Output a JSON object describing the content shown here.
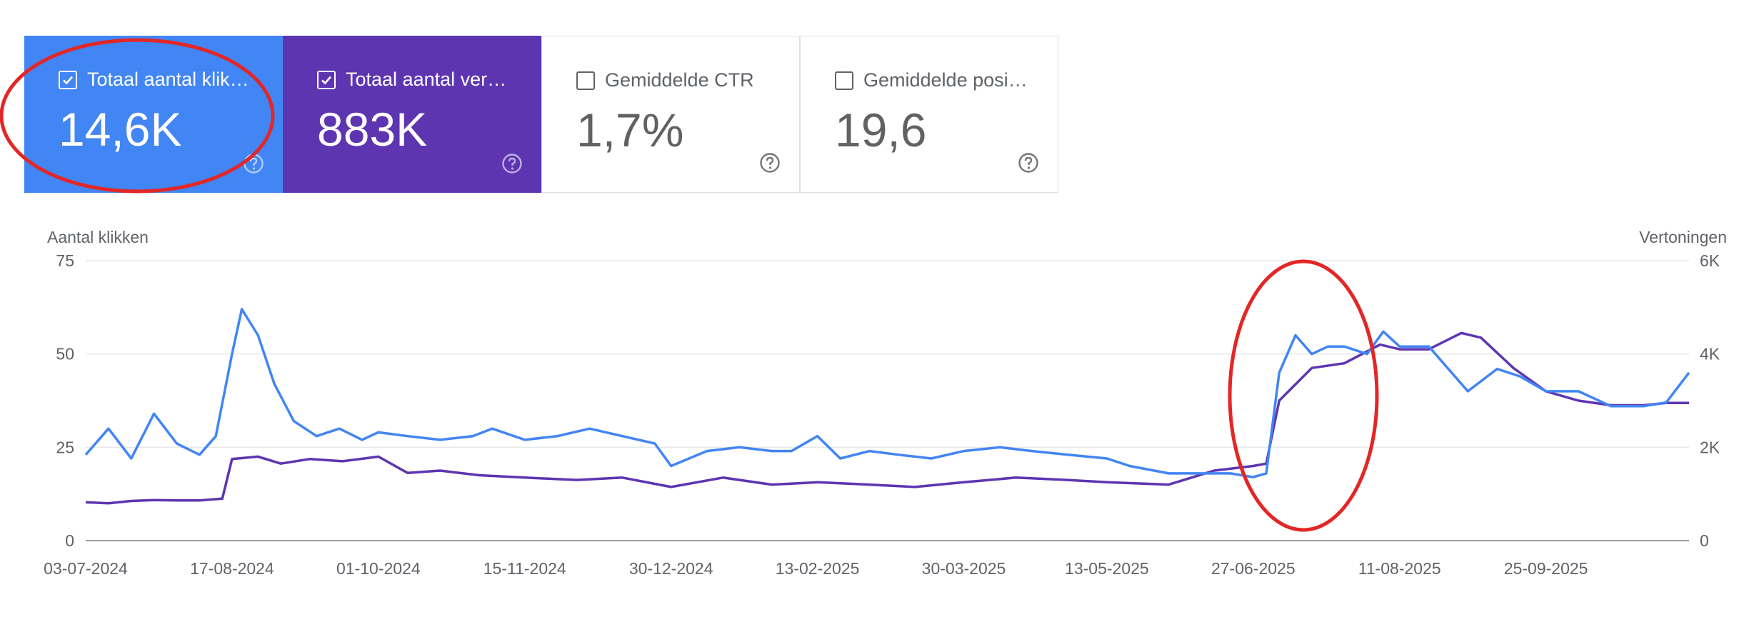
{
  "cards": [
    {
      "label": "Totaal aantal klikken",
      "value": "14,6K",
      "checked": true,
      "color": "#4285f4"
    },
    {
      "label": "Totaal aantal vertoningen",
      "value": "883K",
      "checked": true,
      "color": "#5e35b1"
    },
    {
      "label": "Gemiddelde CTR",
      "value": "1,7%",
      "checked": false
    },
    {
      "label": "Gemiddelde positie",
      "value": "19,6",
      "checked": false
    }
  ],
  "icons": {
    "help": "help-circle-icon",
    "check": "checkmark-icon"
  },
  "colors": {
    "clicks": "#4285f4",
    "impressions": "#5e35b1",
    "annotation": "#e32626"
  },
  "chart_data": {
    "type": "line",
    "ylabel_left": "Aantal klikken",
    "ylabel_right": "Vertoningen",
    "yticks_left": [
      "0",
      "25",
      "50",
      "75"
    ],
    "yticks_right": [
      "0",
      "2K",
      "4K",
      "6K"
    ],
    "ylim_left": [
      0,
      75
    ],
    "ylim_right": [
      0,
      6000
    ],
    "x_start": "03-07-2024",
    "x_end": "08-11-2025",
    "x_ticks": [
      "03-07-2024",
      "17-08-2024",
      "01-10-2024",
      "15-11-2024",
      "30-12-2024",
      "13-02-2025",
      "30-03-2025",
      "13-05-2025",
      "27-06-2025",
      "11-08-2025",
      "25-09-2025"
    ],
    "grid": true,
    "series": [
      {
        "name": "Totaal aantal klikken",
        "axis": "left",
        "color": "#4285f4",
        "points": [
          [
            "03-07-2024",
            23
          ],
          [
            "10-07-2024",
            30
          ],
          [
            "17-07-2024",
            22
          ],
          [
            "24-07-2024",
            34
          ],
          [
            "31-07-2024",
            26
          ],
          [
            "07-08-2024",
            23
          ],
          [
            "12-08-2024",
            28
          ],
          [
            "17-08-2024",
            50
          ],
          [
            "20-08-2024",
            62
          ],
          [
            "25-08-2024",
            55
          ],
          [
            "30-08-2024",
            42
          ],
          [
            "05-09-2024",
            32
          ],
          [
            "12-09-2024",
            28
          ],
          [
            "19-09-2024",
            30
          ],
          [
            "26-09-2024",
            27
          ],
          [
            "01-10-2024",
            29
          ],
          [
            "10-10-2024",
            28
          ],
          [
            "20-10-2024",
            27
          ],
          [
            "30-10-2024",
            28
          ],
          [
            "05-11-2024",
            30
          ],
          [
            "15-11-2024",
            27
          ],
          [
            "25-11-2024",
            28
          ],
          [
            "05-12-2024",
            30
          ],
          [
            "15-12-2024",
            28
          ],
          [
            "25-12-2024",
            26
          ],
          [
            "30-12-2024",
            20
          ],
          [
            "10-01-2025",
            24
          ],
          [
            "20-01-2025",
            25
          ],
          [
            "30-01-2025",
            24
          ],
          [
            "05-02-2025",
            24
          ],
          [
            "13-02-2025",
            28
          ],
          [
            "20-02-2025",
            22
          ],
          [
            "01-03-2025",
            24
          ],
          [
            "10-03-2025",
            23
          ],
          [
            "20-03-2025",
            22
          ],
          [
            "30-03-2025",
            24
          ],
          [
            "10-04-2025",
            25
          ],
          [
            "20-04-2025",
            24
          ],
          [
            "01-05-2025",
            23
          ],
          [
            "13-05-2025",
            22
          ],
          [
            "20-05-2025",
            20
          ],
          [
            "01-06-2025",
            18
          ],
          [
            "10-06-2025",
            18
          ],
          [
            "20-06-2025",
            18
          ],
          [
            "27-06-2025",
            17
          ],
          [
            "01-07-2025",
            18
          ],
          [
            "05-07-2025",
            45
          ],
          [
            "10-07-2025",
            55
          ],
          [
            "15-07-2025",
            50
          ],
          [
            "20-07-2025",
            52
          ],
          [
            "25-07-2025",
            52
          ],
          [
            "01-08-2025",
            50
          ],
          [
            "06-08-2025",
            56
          ],
          [
            "11-08-2025",
            52
          ],
          [
            "20-08-2025",
            52
          ],
          [
            "01-09-2025",
            40
          ],
          [
            "10-09-2025",
            46
          ],
          [
            "17-09-2025",
            44
          ],
          [
            "25-09-2025",
            40
          ],
          [
            "05-10-2025",
            40
          ],
          [
            "15-10-2025",
            36
          ],
          [
            "25-10-2025",
            36
          ],
          [
            "01-11-2025",
            37
          ],
          [
            "08-11-2025",
            45
          ]
        ]
      },
      {
        "name": "Totaal aantal vertoningen",
        "axis": "right",
        "color": "#5e35b1",
        "points": [
          [
            "03-07-2024",
            820
          ],
          [
            "10-07-2024",
            800
          ],
          [
            "17-07-2024",
            850
          ],
          [
            "24-07-2024",
            870
          ],
          [
            "31-07-2024",
            860
          ],
          [
            "07-08-2024",
            860
          ],
          [
            "14-08-2024",
            900
          ],
          [
            "17-08-2024",
            1750
          ],
          [
            "25-08-2024",
            1800
          ],
          [
            "01-09-2024",
            1650
          ],
          [
            "10-09-2024",
            1750
          ],
          [
            "20-09-2024",
            1700
          ],
          [
            "01-10-2024",
            1800
          ],
          [
            "10-10-2024",
            1450
          ],
          [
            "20-10-2024",
            1500
          ],
          [
            "01-11-2024",
            1400
          ],
          [
            "15-11-2024",
            1350
          ],
          [
            "01-12-2024",
            1300
          ],
          [
            "15-12-2024",
            1350
          ],
          [
            "30-12-2024",
            1150
          ],
          [
            "15-01-2025",
            1350
          ],
          [
            "30-01-2025",
            1200
          ],
          [
            "13-02-2025",
            1250
          ],
          [
            "01-03-2025",
            1200
          ],
          [
            "15-03-2025",
            1150
          ],
          [
            "30-03-2025",
            1250
          ],
          [
            "15-04-2025",
            1350
          ],
          [
            "01-05-2025",
            1300
          ],
          [
            "13-05-2025",
            1250
          ],
          [
            "01-06-2025",
            1200
          ],
          [
            "15-06-2025",
            1500
          ],
          [
            "27-06-2025",
            1600
          ],
          [
            "01-07-2025",
            1650
          ],
          [
            "05-07-2025",
            3000
          ],
          [
            "15-07-2025",
            3700
          ],
          [
            "25-07-2025",
            3800
          ],
          [
            "05-08-2025",
            4200
          ],
          [
            "11-08-2025",
            4100
          ],
          [
            "20-08-2025",
            4100
          ],
          [
            "30-08-2025",
            4450
          ],
          [
            "05-09-2025",
            4350
          ],
          [
            "15-09-2025",
            3700
          ],
          [
            "25-09-2025",
            3200
          ],
          [
            "05-10-2025",
            3000
          ],
          [
            "15-10-2025",
            2900
          ],
          [
            "25-10-2025",
            2900
          ],
          [
            "01-11-2025",
            2950
          ],
          [
            "08-11-2025",
            2950
          ]
        ]
      }
    ],
    "annotations": [
      "ellipse around Totaal aantal klikken card",
      "ellipse around the rise at 27-06-2025"
    ]
  }
}
